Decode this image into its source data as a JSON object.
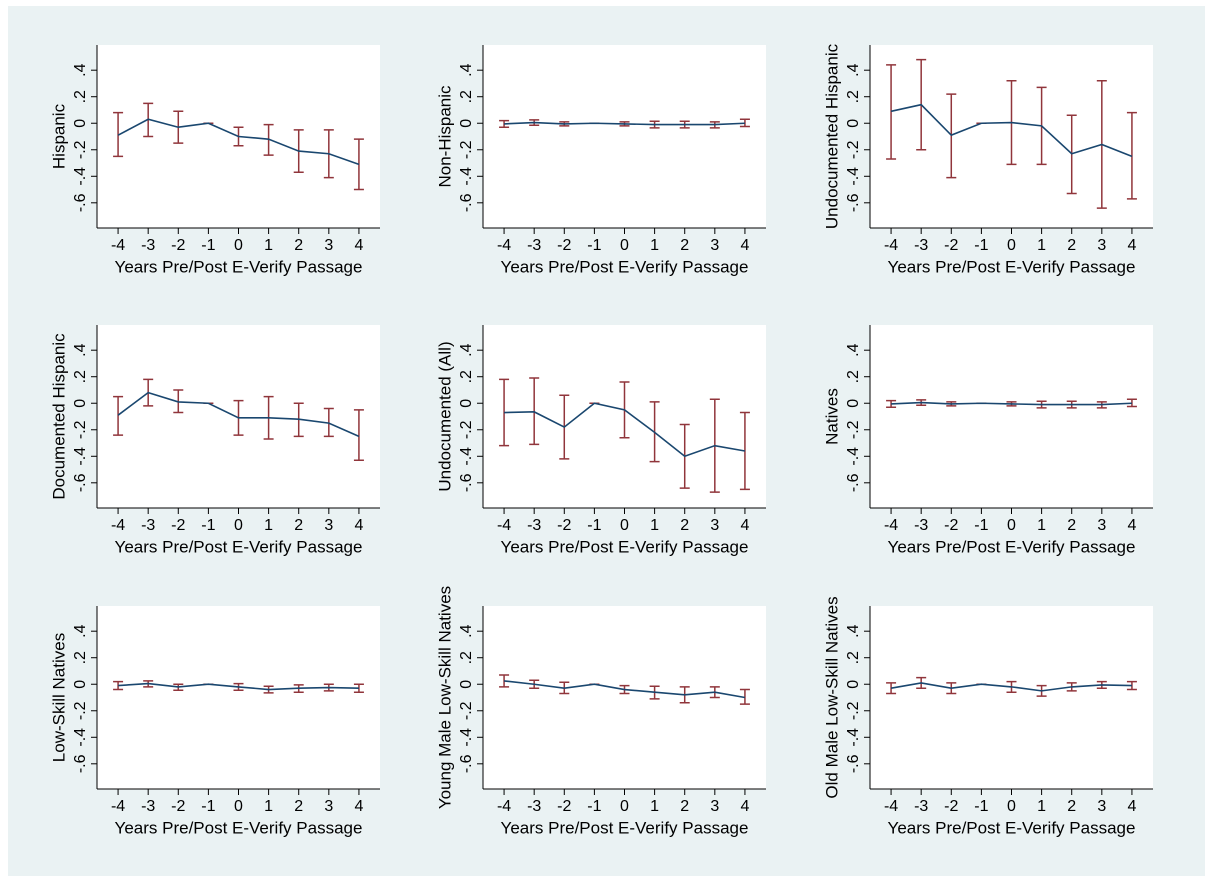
{
  "chart_data": [
    {
      "type": "line",
      "ylabel": "Hispanic",
      "xlabel": "Years Pre/Post E-Verify Passage",
      "x": [
        -4,
        -3,
        -2,
        -1,
        0,
        1,
        2,
        3,
        4
      ],
      "values": [
        -0.09,
        0.03,
        -0.03,
        0,
        -0.1,
        -0.12,
        -0.21,
        -0.23,
        -0.31
      ],
      "ci_low": [
        -0.25,
        -0.1,
        -0.15,
        0,
        -0.17,
        -0.24,
        -0.37,
        -0.41,
        -0.5
      ],
      "ci_high": [
        0.08,
        0.15,
        0.09,
        0,
        -0.03,
        -0.01,
        -0.05,
        -0.05,
        -0.12
      ],
      "color": "#1a476f",
      "ci_color": "#90353b",
      "xlim": [
        -4.7,
        4.7
      ],
      "ylim": [
        -0.79,
        0.59
      ],
      "xticks": [
        -4,
        -3,
        -2,
        -1,
        0,
        1,
        2,
        3,
        4
      ],
      "yticks": [
        {
          "value": -0.6,
          "label": "-.6"
        },
        {
          "value": -0.4,
          "label": "-.4"
        },
        {
          "value": -0.2,
          "label": "-.2"
        },
        0,
        {
          "value": 0.2,
          "label": ".2"
        },
        {
          "value": 0.4,
          "label": ".4"
        }
      ]
    },
    {
      "type": "line",
      "ylabel": "Non-Hispanic",
      "xlabel": "Years Pre/Post E-Verify Passage",
      "x": [
        -4,
        -3,
        -2,
        -1,
        0,
        1,
        2,
        3,
        4
      ],
      "values": [
        -0.005,
        0.005,
        -0.005,
        0,
        -0.005,
        -0.01,
        -0.01,
        -0.01,
        0
      ],
      "ci_low": [
        -0.03,
        -0.015,
        -0.02,
        0,
        -0.02,
        -0.035,
        -0.035,
        -0.035,
        -0.025
      ],
      "ci_high": [
        0.02,
        0.025,
        0.01,
        0,
        0.01,
        0.015,
        0.015,
        0.01,
        0.03
      ],
      "color": "#1a476f",
      "ci_color": "#90353b",
      "xlim": [
        -4.7,
        4.7
      ],
      "ylim": [
        -0.79,
        0.59
      ],
      "xticks": [
        -4,
        -3,
        -2,
        -1,
        0,
        1,
        2,
        3,
        4
      ],
      "yticks": [
        {
          "value": -0.6,
          "label": "-.6"
        },
        {
          "value": -0.4,
          "label": "-.4"
        },
        {
          "value": -0.2,
          "label": "-.2"
        },
        0,
        {
          "value": 0.2,
          "label": ".2"
        },
        {
          "value": 0.4,
          "label": ".4"
        }
      ]
    },
    {
      "type": "line",
      "ylabel": "Undocumented Hispanic",
      "xlabel": "Years Pre/Post E-Verify Passage",
      "x": [
        -4,
        -3,
        -2,
        -1,
        0,
        1,
        2,
        3,
        4
      ],
      "values": [
        0.09,
        0.14,
        -0.09,
        0,
        0.005,
        -0.02,
        -0.23,
        -0.16,
        -0.25
      ],
      "ci_low": [
        -0.27,
        -0.2,
        -0.41,
        0,
        -0.31,
        -0.31,
        -0.53,
        -0.64,
        -0.57
      ],
      "ci_high": [
        0.44,
        0.48,
        0.22,
        0,
        0.32,
        0.27,
        0.06,
        0.32,
        0.08
      ],
      "color": "#1a476f",
      "ci_color": "#90353b",
      "xlim": [
        -4.7,
        4.7
      ],
      "ylim": [
        -0.79,
        0.59
      ],
      "xticks": [
        -4,
        -3,
        -2,
        -1,
        0,
        1,
        2,
        3,
        4
      ],
      "yticks": [
        {
          "value": -0.6,
          "label": "-.6"
        },
        {
          "value": -0.4,
          "label": "-.4"
        },
        {
          "value": -0.2,
          "label": "-.2"
        },
        0,
        {
          "value": 0.2,
          "label": ".2"
        },
        {
          "value": 0.4,
          "label": ".4"
        }
      ]
    },
    {
      "type": "line",
      "ylabel": "Documented Hispanic",
      "xlabel": "Years Pre/Post E-Verify Passage",
      "x": [
        -4,
        -3,
        -2,
        -1,
        0,
        1,
        2,
        3,
        4
      ],
      "values": [
        -0.09,
        0.08,
        0.01,
        0,
        -0.11,
        -0.11,
        -0.12,
        -0.15,
        -0.25
      ],
      "ci_low": [
        -0.24,
        -0.02,
        -0.07,
        0,
        -0.24,
        -0.27,
        -0.25,
        -0.25,
        -0.43
      ],
      "ci_high": [
        0.05,
        0.18,
        0.1,
        0,
        0.02,
        0.05,
        0,
        -0.04,
        -0.05
      ],
      "color": "#1a476f",
      "ci_color": "#90353b",
      "xlim": [
        -4.7,
        4.7
      ],
      "ylim": [
        -0.79,
        0.59
      ],
      "xticks": [
        -4,
        -3,
        -2,
        -1,
        0,
        1,
        2,
        3,
        4
      ],
      "yticks": [
        {
          "value": -0.6,
          "label": "-.6"
        },
        {
          "value": -0.4,
          "label": "-.4"
        },
        {
          "value": -0.2,
          "label": "-.2"
        },
        0,
        {
          "value": 0.2,
          "label": ".2"
        },
        {
          "value": 0.4,
          "label": ".4"
        }
      ]
    },
    {
      "type": "line",
      "ylabel": "Undocumented (All)",
      "xlabel": "Years Pre/Post E-Verify Passage",
      "x": [
        -4,
        -3,
        -2,
        -1,
        0,
        1,
        2,
        3,
        4
      ],
      "values": [
        -0.07,
        -0.065,
        -0.18,
        0,
        -0.05,
        -0.22,
        -0.4,
        -0.32,
        -0.36
      ],
      "ci_low": [
        -0.32,
        -0.31,
        -0.42,
        0,
        -0.26,
        -0.44,
        -0.64,
        -0.67,
        -0.65
      ],
      "ci_high": [
        0.18,
        0.19,
        0.06,
        0,
        0.16,
        0.01,
        -0.16,
        0.03,
        -0.07
      ],
      "color": "#1a476f",
      "ci_color": "#90353b",
      "xlim": [
        -4.7,
        4.7
      ],
      "ylim": [
        -0.79,
        0.59
      ],
      "xticks": [
        -4,
        -3,
        -2,
        -1,
        0,
        1,
        2,
        3,
        4
      ],
      "yticks": [
        {
          "value": -0.6,
          "label": "-.6"
        },
        {
          "value": -0.4,
          "label": "-.4"
        },
        {
          "value": -0.2,
          "label": "-.2"
        },
        0,
        {
          "value": 0.2,
          "label": ".2"
        },
        {
          "value": 0.4,
          "label": ".4"
        }
      ]
    },
    {
      "type": "line",
      "ylabel": "Natives",
      "xlabel": "Years Pre/Post E-Verify Passage",
      "x": [
        -4,
        -3,
        -2,
        -1,
        0,
        1,
        2,
        3,
        4
      ],
      "values": [
        -0.005,
        0.005,
        -0.005,
        0,
        -0.005,
        -0.01,
        -0.01,
        -0.01,
        0
      ],
      "ci_low": [
        -0.03,
        -0.015,
        -0.02,
        0,
        -0.02,
        -0.035,
        -0.035,
        -0.035,
        -0.025
      ],
      "ci_high": [
        0.02,
        0.025,
        0.01,
        0,
        0.01,
        0.015,
        0.015,
        0.01,
        0.03
      ],
      "color": "#1a476f",
      "ci_color": "#90353b",
      "xlim": [
        -4.7,
        4.7
      ],
      "ylim": [
        -0.79,
        0.59
      ],
      "xticks": [
        -4,
        -3,
        -2,
        -1,
        0,
        1,
        2,
        3,
        4
      ],
      "yticks": [
        {
          "value": -0.6,
          "label": "-.6"
        },
        {
          "value": -0.4,
          "label": "-.4"
        },
        {
          "value": -0.2,
          "label": "-.2"
        },
        0,
        {
          "value": 0.2,
          "label": ".2"
        },
        {
          "value": 0.4,
          "label": ".4"
        }
      ]
    },
    {
      "type": "line",
      "ylabel": "Low-Skill Natives",
      "xlabel": "Years Pre/Post E-Verify Passage",
      "x": [
        -4,
        -3,
        -2,
        -1,
        0,
        1,
        2,
        3,
        4
      ],
      "values": [
        -0.01,
        0.005,
        -0.02,
        0,
        -0.02,
        -0.04,
        -0.03,
        -0.025,
        -0.03
      ],
      "ci_low": [
        -0.04,
        -0.02,
        -0.045,
        0,
        -0.045,
        -0.065,
        -0.06,
        -0.05,
        -0.06
      ],
      "ci_high": [
        0.02,
        0.025,
        0,
        0,
        0.005,
        -0.015,
        -0.005,
        0,
        0
      ],
      "color": "#1a476f",
      "ci_color": "#90353b",
      "xlim": [
        -4.7,
        4.7
      ],
      "ylim": [
        -0.79,
        0.59
      ],
      "xticks": [
        -4,
        -3,
        -2,
        -1,
        0,
        1,
        2,
        3,
        4
      ],
      "yticks": [
        {
          "value": -0.6,
          "label": "-.6"
        },
        {
          "value": -0.4,
          "label": "-.4"
        },
        {
          "value": -0.2,
          "label": "-.2"
        },
        0,
        {
          "value": 0.2,
          "label": ".2"
        },
        {
          "value": 0.4,
          "label": ".4"
        }
      ]
    },
    {
      "type": "line",
      "ylabel": "Young Male Low-Skill Natives",
      "xlabel": "Years Pre/Post E-Verify Passage",
      "x": [
        -4,
        -3,
        -2,
        -1,
        0,
        1,
        2,
        3,
        4
      ],
      "values": [
        0.025,
        0,
        -0.03,
        0,
        -0.04,
        -0.06,
        -0.08,
        -0.06,
        -0.1
      ],
      "ci_low": [
        -0.02,
        -0.03,
        -0.07,
        0,
        -0.07,
        -0.11,
        -0.14,
        -0.1,
        -0.15
      ],
      "ci_high": [
        0.07,
        0.03,
        0.015,
        0,
        -0.01,
        -0.015,
        -0.02,
        -0.02,
        -0.04
      ],
      "color": "#1a476f",
      "ci_color": "#90353b",
      "xlim": [
        -4.7,
        4.7
      ],
      "ylim": [
        -0.79,
        0.59
      ],
      "xticks": [
        -4,
        -3,
        -2,
        -1,
        0,
        1,
        2,
        3,
        4
      ],
      "yticks": [
        {
          "value": -0.6,
          "label": "-.6"
        },
        {
          "value": -0.4,
          "label": "-.4"
        },
        {
          "value": -0.2,
          "label": "-.2"
        },
        0,
        {
          "value": 0.2,
          "label": ".2"
        },
        {
          "value": 0.4,
          "label": ".4"
        }
      ]
    },
    {
      "type": "line",
      "ylabel": "Old Male Low-Skill Natives",
      "xlabel": "Years Pre/Post E-Verify Passage",
      "x": [
        -4,
        -3,
        -2,
        -1,
        0,
        1,
        2,
        3,
        4
      ],
      "values": [
        -0.03,
        0.01,
        -0.03,
        0,
        -0.02,
        -0.05,
        -0.02,
        -0.005,
        -0.01
      ],
      "ci_low": [
        -0.07,
        -0.03,
        -0.07,
        0,
        -0.06,
        -0.09,
        -0.05,
        -0.03,
        -0.04
      ],
      "ci_high": [
        0.01,
        0.05,
        0.01,
        0,
        0.02,
        -0.01,
        0.01,
        0.02,
        0.02
      ],
      "color": "#1a476f",
      "ci_color": "#90353b",
      "xlim": [
        -4.7,
        4.7
      ],
      "ylim": [
        -0.79,
        0.59
      ],
      "xticks": [
        -4,
        -3,
        -2,
        -1,
        0,
        1,
        2,
        3,
        4
      ],
      "yticks": [
        {
          "value": -0.6,
          "label": "-.6"
        },
        {
          "value": -0.4,
          "label": "-.4"
        },
        {
          "value": -0.2,
          "label": "-.2"
        },
        0,
        {
          "value": 0.2,
          "label": ".2"
        },
        {
          "value": 0.4,
          "label": ".4"
        }
      ]
    }
  ]
}
